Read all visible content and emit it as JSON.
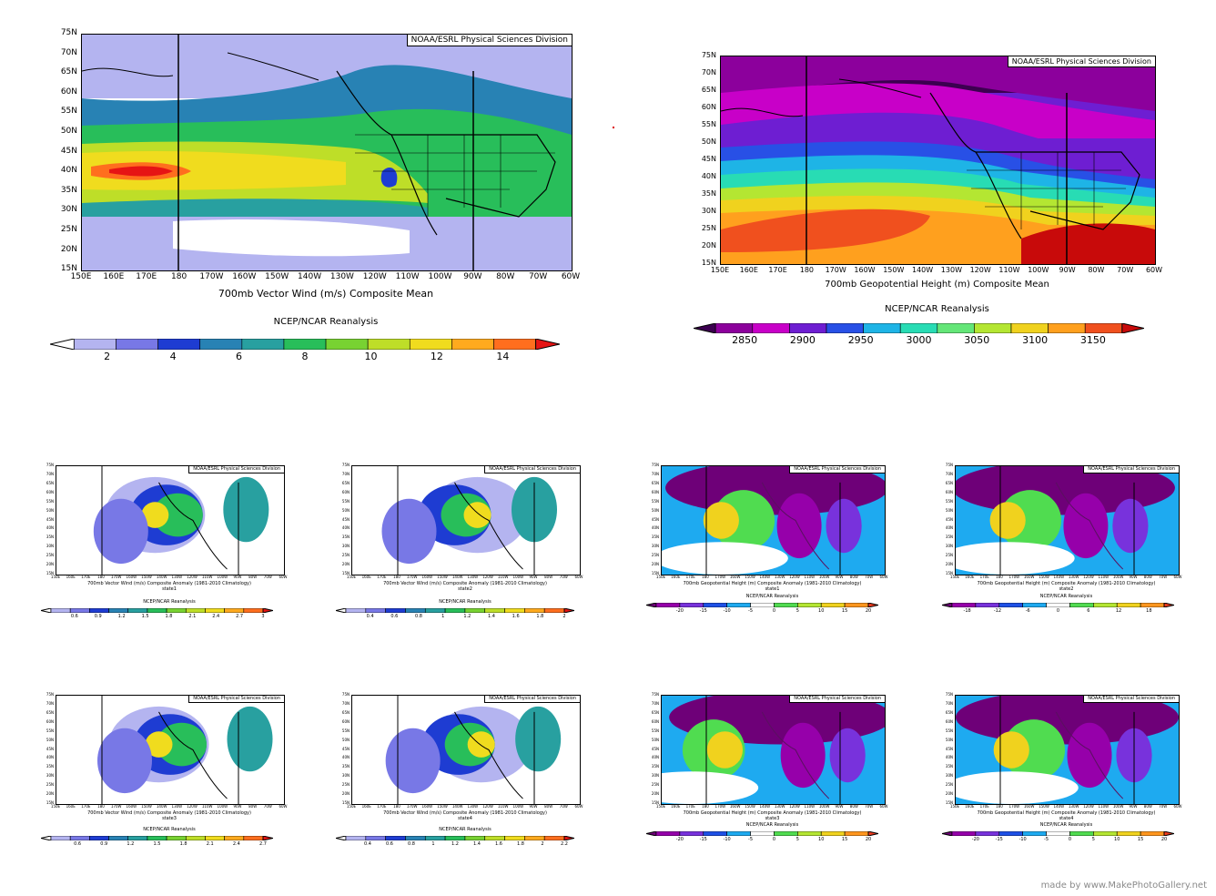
{
  "credit": "NOAA/ESRL Physical Sciences Division",
  "reanalysis": "NCEP/NCAR Reanalysis",
  "lat_labels": [
    "75N",
    "70N",
    "65N",
    "60N",
    "55N",
    "50N",
    "45N",
    "40N",
    "35N",
    "30N",
    "25N",
    "20N",
    "15N"
  ],
  "lon_labels": [
    "150E",
    "160E",
    "170E",
    "180",
    "170W",
    "160W",
    "150W",
    "140W",
    "130W",
    "120W",
    "110W",
    "100W",
    "90W",
    "80W",
    "70W",
    "60W"
  ],
  "colors": {
    "wind": [
      "#ffffff",
      "#b4b4f0",
      "#7878e6",
      "#1e3cd2",
      "#2882b4",
      "#28a0a0",
      "#28be5a",
      "#78d232",
      "#bede28",
      "#f0dc1e",
      "#ffaa1e",
      "#ff6e1e",
      "#e61414"
    ],
    "height": [
      "#3c0050",
      "#8c009c",
      "#c800c8",
      "#6e1ed2",
      "#2850e6",
      "#1eb4e6",
      "#28dcb4",
      "#64e678",
      "#b4e632",
      "#f0d21e",
      "#ffa01e",
      "#f0501e",
      "#c80a0a"
    ],
    "anom": [
      "#6e0078",
      "#9600aa",
      "#7832dc",
      "#1e50e6",
      "#1eaaf0",
      "#ffffff",
      "#50dc50",
      "#b4e632",
      "#f0d21e",
      "#ff961e",
      "#f03c1e"
    ]
  },
  "top_left": {
    "caption": "700mb Vector Wind (m/s) Composite Mean",
    "ticks": [
      "2",
      "4",
      "6",
      "8",
      "10",
      "12",
      "14"
    ]
  },
  "top_right": {
    "caption": "700mb Geopotential Height (m) Composite Mean",
    "ticks": [
      "2850",
      "2900",
      "2950",
      "3000",
      "3050",
      "3100",
      "3150"
    ]
  },
  "small": [
    {
      "caption": "700mb Vector Wind (m/s) Composite Anomaly (1981-2010 Climatology)",
      "state": "state1",
      "ticks": [
        "0.6",
        "0.9",
        "1.2",
        "1.5",
        "1.8",
        "2.1",
        "2.4",
        "2.7",
        "3"
      ]
    },
    {
      "caption": "700mb Vector Wind (m/s) Composite Anomaly (1981-2010 Climatology)",
      "state": "state2",
      "ticks": [
        "0.4",
        "0.6",
        "0.8",
        "1",
        "1.2",
        "1.4",
        "1.6",
        "1.8",
        "2"
      ]
    },
    {
      "caption": "700mb Geopotential Height (m) Composite Anomaly (1981-2010 Climatology)",
      "state": "state1",
      "ticks": [
        "-20",
        "-15",
        "-10",
        "-5",
        "0",
        "5",
        "10",
        "15",
        "20"
      ]
    },
    {
      "caption": "700mb Geopotential Height (m) Composite Anomaly (1981-2010 Climatology)",
      "state": "state2",
      "ticks": [
        "-18",
        "-12",
        "-6",
        "0",
        "6",
        "12",
        "18"
      ]
    },
    {
      "caption": "700mb Vector Wind (m/s) Composite Anomaly (1981-2010 Climatology)",
      "state": "state3",
      "ticks": [
        "0.6",
        "0.9",
        "1.2",
        "1.5",
        "1.8",
        "2.1",
        "2.4",
        "2.7"
      ]
    },
    {
      "caption": "700mb Vector Wind (m/s) Composite Anomaly (1981-2010 Climatology)",
      "state": "state4",
      "ticks": [
        "0.4",
        "0.6",
        "0.8",
        "1",
        "1.2",
        "1.4",
        "1.6",
        "1.8",
        "2",
        "2.2"
      ]
    },
    {
      "caption": "700mb Geopotential Height (m) Composite Anomaly (1981-2010 Climatology)",
      "state": "state3",
      "ticks": [
        "-20",
        "-15",
        "-10",
        "-5",
        "0",
        "5",
        "10",
        "15",
        "20"
      ]
    },
    {
      "caption": "700mb Geopotential Height (m) Composite Anomaly (1981-2010 Climatology)",
      "state": "state4",
      "ticks": [
        "-20",
        "-15",
        "-10",
        "-5",
        "0",
        "5",
        "10",
        "15",
        "20"
      ]
    }
  ],
  "watermark": "made by www.MakePhotoGallery.net"
}
